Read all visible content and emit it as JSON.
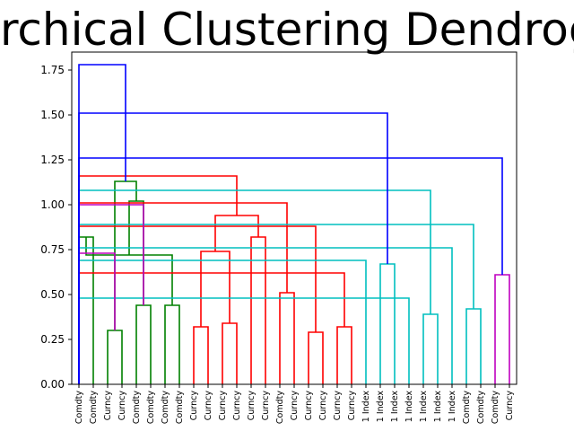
{
  "chart_data": {
    "type": "dendrogram",
    "title": "Hierarchical Clustering Dendrogram",
    "xlabel": "",
    "ylabel": "",
    "ylim": [
      0,
      1.85
    ],
    "yticks": [
      "0.00",
      "0.25",
      "0.50",
      "0.75",
      "1.00",
      "1.25",
      "1.50",
      "1.75"
    ],
    "leaves": [
      "Comdty",
      "Comdty",
      "Curncy",
      "Curncy",
      "Comdty",
      "Comdty",
      "Comdty",
      "Comdty",
      "Curncy",
      "Curncy",
      "Curncy",
      "Curncy",
      "Curncy",
      "Curncy",
      "Comdty",
      "Curncy",
      "Curncy",
      "Curncy",
      "Curncy",
      "Curncy",
      "1 Index",
      "1 Index",
      "1 Index",
      "1 Index",
      "1 Index",
      "1 Index",
      "1 Index",
      "Comdty",
      "Comdty",
      "Comdty",
      "Curncy"
    ],
    "colors": {
      "green": "#008000",
      "red": "#ff0000",
      "cyan": "#00bfbf",
      "magenta": "#bf00bf",
      "blue": "#0000ff"
    },
    "links": [
      {
        "left": 2,
        "right": 3,
        "height": 0.3,
        "color": "green"
      },
      {
        "left": 4,
        "right": 5,
        "height": 0.44,
        "color": "green"
      },
      {
        "left": 6,
        "right": 7,
        "height": 0.44,
        "color": "green"
      },
      {
        "left": 0,
        "right": 1,
        "height": 0.82,
        "color": "green"
      },
      {
        "left": 33,
        "right": 34,
        "height": 0.72,
        "color": "green"
      },
      {
        "left": 32,
        "right": 35,
        "height": 1.02,
        "color": "green"
      },
      {
        "left": 31,
        "right": 36,
        "height": 1.13,
        "color": "green"
      },
      {
        "left": 8,
        "right": 9,
        "height": 0.32,
        "color": "red"
      },
      {
        "left": 10,
        "right": 11,
        "height": 0.34,
        "color": "red"
      },
      {
        "left": 38,
        "right": 39,
        "height": 0.74,
        "color": "red"
      },
      {
        "left": 12,
        "right": 13,
        "height": 0.82,
        "color": "red"
      },
      {
        "left": 40,
        "right": 41,
        "height": 0.94,
        "color": "red"
      },
      {
        "left": 16,
        "right": 17,
        "height": 0.29,
        "color": "red"
      },
      {
        "left": 18,
        "right": 19,
        "height": 0.32,
        "color": "red"
      },
      {
        "left": 44,
        "right": 45,
        "height": 0.62,
        "color": "red"
      },
      {
        "left": 43,
        "right": 46,
        "height": 0.88,
        "color": "red"
      },
      {
        "left": 14,
        "right": 15,
        "height": 0.51,
        "color": "red"
      },
      {
        "left": 48,
        "right": 47,
        "height": 1.01,
        "color": "red"
      },
      {
        "left": 42,
        "right": 49,
        "height": 1.16,
        "color": "red"
      },
      {
        "left": 21,
        "right": 22,
        "height": 0.67,
        "color": "cyan"
      },
      {
        "left": 20,
        "right": 51,
        "height": 0.69,
        "color": "cyan"
      },
      {
        "left": 24,
        "right": 25,
        "height": 0.39,
        "color": "cyan"
      },
      {
        "left": 23,
        "right": 53,
        "height": 0.48,
        "color": "cyan"
      },
      {
        "left": 27,
        "right": 28,
        "height": 0.42,
        "color": "cyan"
      },
      {
        "left": 26,
        "right": 55,
        "height": 0.76,
        "color": "cyan"
      },
      {
        "left": 54,
        "right": 56,
        "height": 0.89,
        "color": "cyan"
      },
      {
        "left": 52,
        "right": 57,
        "height": 1.08,
        "color": "cyan"
      },
      {
        "left": 29,
        "right": 30,
        "height": 0.61,
        "color": "magenta"
      },
      {
        "left": 31,
        "right": 59,
        "height": 0.73,
        "color": "magenta"
      },
      {
        "left": 60,
        "right": 32,
        "height": 1.0,
        "color": "magenta"
      },
      {
        "left": 61,
        "right": 62,
        "height": 1.08,
        "color": "magenta"
      },
      {
        "left": 58,
        "right": 62,
        "height": 1.26,
        "color": "blue"
      },
      {
        "left": 50,
        "right": 63,
        "height": 1.51,
        "color": "blue"
      },
      {
        "left": 37,
        "right": 64,
        "height": 1.78,
        "color": "blue"
      }
    ]
  }
}
